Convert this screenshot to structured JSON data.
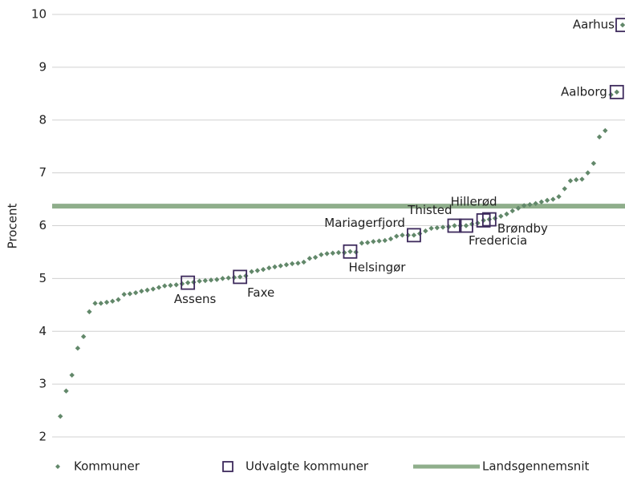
{
  "chart_data": {
    "type": "scatter",
    "ylabel": "Procent",
    "ylim": [
      2,
      10
    ],
    "yticks": [
      2,
      3,
      4,
      5,
      6,
      7,
      8,
      9,
      10
    ],
    "grid": true,
    "xlim": [
      0,
      98
    ],
    "series": [
      {
        "name": "Kommuner",
        "color": "#62886a",
        "values": [
          2.39,
          2.87,
          3.17,
          3.68,
          3.9,
          4.37,
          4.53,
          4.53,
          4.55,
          4.57,
          4.6,
          4.7,
          4.71,
          4.73,
          4.76,
          4.78,
          4.8,
          4.83,
          4.86,
          4.87,
          4.88,
          4.9,
          4.92,
          4.93,
          4.95,
          4.96,
          4.97,
          4.98,
          5.0,
          5.01,
          5.02,
          5.03,
          5.05,
          5.13,
          5.15,
          5.17,
          5.2,
          5.22,
          5.24,
          5.26,
          5.28,
          5.29,
          5.31,
          5.38,
          5.4,
          5.45,
          5.47,
          5.48,
          5.49,
          5.49,
          5.51,
          5.5,
          5.67,
          5.68,
          5.7,
          5.71,
          5.72,
          5.75,
          5.8,
          5.82,
          5.82,
          5.82,
          5.85,
          5.9,
          5.95,
          5.96,
          5.97,
          5.98,
          6.0,
          6.0,
          6.0,
          6.03,
          6.05,
          6.1,
          6.12,
          6.14,
          6.18,
          6.22,
          6.28,
          6.33,
          6.38,
          6.4,
          6.42,
          6.45,
          6.48,
          6.5,
          6.55,
          6.7,
          6.85,
          6.87,
          6.88,
          7.0,
          7.18,
          7.68,
          7.8,
          8.48,
          8.53,
          9.8
        ]
      },
      {
        "name": "Udvalgte kommuner",
        "color": "#3d2a5c",
        "labels": [
          "Assens",
          "Faxe",
          "Helsingør",
          "Mariagerfjord",
          "Thisted",
          "Fredericia",
          "Hillerød",
          "Brøndby",
          "Aalborg",
          "Aarhus"
        ],
        "x": [
          23,
          32,
          51,
          62,
          69,
          71,
          74,
          75,
          97,
          98
        ],
        "values": [
          4.92,
          5.03,
          5.51,
          5.82,
          6.0,
          6.0,
          6.1,
          6.12,
          8.53,
          9.8
        ]
      },
      {
        "name": "Landsgennemsnit",
        "color": "#8fae8b",
        "value": 6.37
      }
    ]
  }
}
